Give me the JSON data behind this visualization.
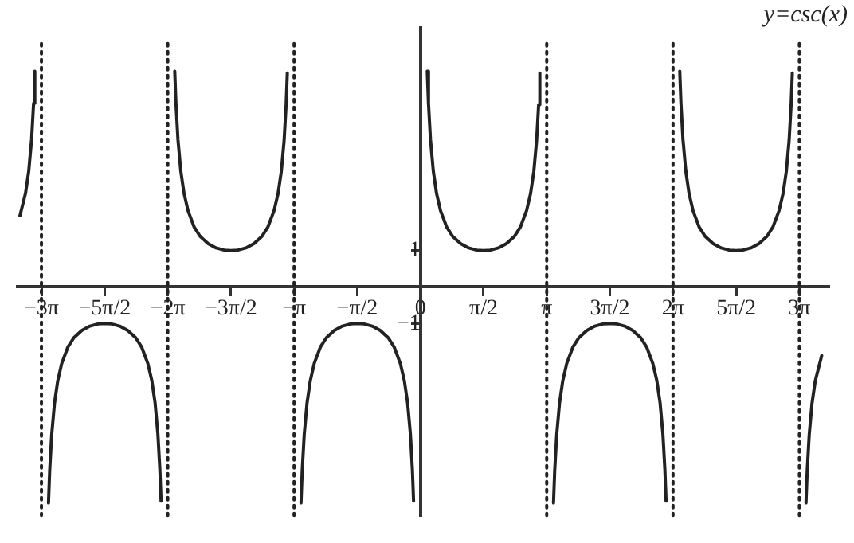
{
  "chart_data": {
    "type": "line",
    "annotations": [
      "y=csc(x)"
    ],
    "marker": "none",
    "grid": false,
    "legend": false,
    "xlim": [
      -10.02,
      10.15
    ],
    "ylim": [
      -6.25,
      7.1
    ],
    "xticks": [
      {
        "value": -9.4248,
        "label": "−3π"
      },
      {
        "value": -7.854,
        "label": "−5π/2"
      },
      {
        "value": -6.2832,
        "label": "−2π"
      },
      {
        "value": -4.7124,
        "label": "−3π/2"
      },
      {
        "value": -3.1416,
        "label": "−π"
      },
      {
        "value": -1.5708,
        "label": "−π/2"
      },
      0,
      {
        "value": 1.5708,
        "label": "π/2"
      },
      {
        "value": 3.1416,
        "label": "π"
      },
      {
        "value": 4.7124,
        "label": "3π/2"
      },
      {
        "value": 6.2832,
        "label": "2π"
      },
      {
        "value": 7.854,
        "label": "5π/2"
      },
      {
        "value": 9.4248,
        "label": "3π"
      }
    ],
    "yticks": [
      {
        "value": -1,
        "label": "−1"
      },
      1
    ],
    "ref_lines": [
      {
        "axis": "x",
        "value": -9.4248,
        "line_style": "dotted",
        "color": "#222222"
      },
      {
        "axis": "x",
        "value": -6.2832,
        "line_style": "dotted",
        "color": "#222222"
      },
      {
        "axis": "x",
        "value": -3.1416,
        "line_style": "dotted",
        "color": "#222222"
      },
      {
        "axis": "x",
        "value": 3.1416,
        "line_style": "dotted",
        "color": "#222222"
      },
      {
        "axis": "x",
        "value": 6.2832,
        "line_style": "dotted",
        "color": "#222222"
      },
      {
        "axis": "x",
        "value": 9.4248,
        "line_style": "dotted",
        "color": "#222222"
      }
    ],
    "series": [
      {
        "color": "#222222",
        "x": [
          -9.96,
          -9.82,
          -9.74,
          -9.67,
          -9.62,
          -9.59
        ],
        "values": [
          1.95,
          2.57,
          3.18,
          4.04,
          5.03,
          5.91
        ]
      },
      {
        "color": "#222222",
        "x": [
          -9.25,
          -9.22,
          -9.17,
          -9.1,
          -9.02,
          -8.92,
          -8.77,
          -8.62,
          -8.42,
          -8.22,
          -8.02,
          -7.85,
          -7.68,
          -7.48,
          -7.28,
          -7.08,
          -6.93,
          -6.78,
          -6.68,
          -6.6,
          -6.53,
          -6.48,
          -6.45
        ],
        "values": [
          -5.91,
          -5.03,
          -4.04,
          -3.18,
          -2.57,
          -2.09,
          -1.65,
          -1.39,
          -1.19,
          -1.07,
          -1.01,
          -1.0,
          -1.01,
          -1.07,
          -1.19,
          -1.39,
          -1.65,
          -2.09,
          -2.56,
          -3.16,
          -4.01,
          -4.99,
          -5.86
        ]
      },
      {
        "color": "#222222",
        "x": [
          -6.11,
          -6.08,
          -6.03,
          -5.96,
          -5.88,
          -5.78,
          -5.63,
          -5.48,
          -5.28,
          -5.08,
          -4.88,
          -4.71,
          -4.54,
          -4.34,
          -4.14,
          -3.94,
          -3.79,
          -3.64,
          -3.54,
          -3.46,
          -3.39,
          -3.34,
          -3.31
        ],
        "values": [
          5.91,
          5.03,
          4.04,
          3.18,
          2.57,
          2.09,
          1.65,
          1.39,
          1.19,
          1.07,
          1.01,
          1.0,
          1.01,
          1.07,
          1.19,
          1.39,
          1.65,
          2.09,
          2.56,
          3.16,
          4.01,
          4.99,
          5.86
        ]
      },
      {
        "color": "#222222",
        "x": [
          -2.97,
          -2.94,
          -2.89,
          -2.82,
          -2.74,
          -2.64,
          -2.49,
          -2.34,
          -2.14,
          -1.94,
          -1.74,
          -1.57,
          -1.4,
          -1.2,
          -1.0,
          -0.8,
          -0.65,
          -0.5,
          -0.4,
          -0.32,
          -0.25,
          -0.2,
          -0.17
        ],
        "values": [
          -5.91,
          -5.03,
          -4.04,
          -3.18,
          -2.57,
          -2.09,
          -1.65,
          -1.39,
          -1.19,
          -1.07,
          -1.01,
          -1.0,
          -1.01,
          -1.07,
          -1.19,
          -1.39,
          -1.65,
          -2.09,
          -2.56,
          -3.16,
          -4.01,
          -4.99,
          -5.86
        ]
      },
      {
        "color": "#222222",
        "x": [
          0.17,
          0.2,
          0.25,
          0.32,
          0.4,
          0.5,
          0.65,
          0.8,
          1.0,
          1.2,
          1.4,
          1.57,
          1.74,
          1.94,
          2.14,
          2.34,
          2.49,
          2.64,
          2.74,
          2.82,
          2.89,
          2.94,
          2.97
        ],
        "values": [
          5.91,
          5.03,
          4.04,
          3.18,
          2.57,
          2.09,
          1.65,
          1.39,
          1.19,
          1.07,
          1.01,
          1.0,
          1.01,
          1.07,
          1.19,
          1.39,
          1.65,
          2.09,
          2.56,
          3.16,
          4.01,
          4.99,
          5.86
        ]
      },
      {
        "color": "#222222",
        "x": [
          3.31,
          3.34,
          3.39,
          3.46,
          3.54,
          3.64,
          3.79,
          3.94,
          4.14,
          4.34,
          4.54,
          4.71,
          4.88,
          5.08,
          5.28,
          5.48,
          5.63,
          5.78,
          5.88,
          5.96,
          6.03,
          6.08,
          6.11
        ],
        "values": [
          -5.91,
          -5.03,
          -4.04,
          -3.18,
          -2.57,
          -2.09,
          -1.65,
          -1.39,
          -1.19,
          -1.07,
          -1.01,
          -1.0,
          -1.01,
          -1.07,
          -1.19,
          -1.39,
          -1.65,
          -2.09,
          -2.56,
          -3.16,
          -4.01,
          -4.99,
          -5.86
        ]
      },
      {
        "color": "#222222",
        "x": [
          6.45,
          6.48,
          6.53,
          6.6,
          6.68,
          6.78,
          6.93,
          7.08,
          7.28,
          7.48,
          7.68,
          7.85,
          8.02,
          8.22,
          8.42,
          8.62,
          8.77,
          8.92,
          9.02,
          9.1,
          9.17,
          9.22,
          9.25
        ],
        "values": [
          5.91,
          5.03,
          4.04,
          3.18,
          2.57,
          2.09,
          1.65,
          1.39,
          1.19,
          1.07,
          1.01,
          1.0,
          1.01,
          1.07,
          1.19,
          1.39,
          1.65,
          2.09,
          2.56,
          3.16,
          4.01,
          4.99,
          5.86
        ]
      },
      {
        "color": "#222222",
        "x": [
          9.59,
          9.62,
          9.67,
          9.74,
          9.82,
          9.98
        ],
        "values": [
          -5.91,
          -5.03,
          -4.04,
          -3.18,
          -2.57,
          -1.88
        ]
      }
    ]
  }
}
